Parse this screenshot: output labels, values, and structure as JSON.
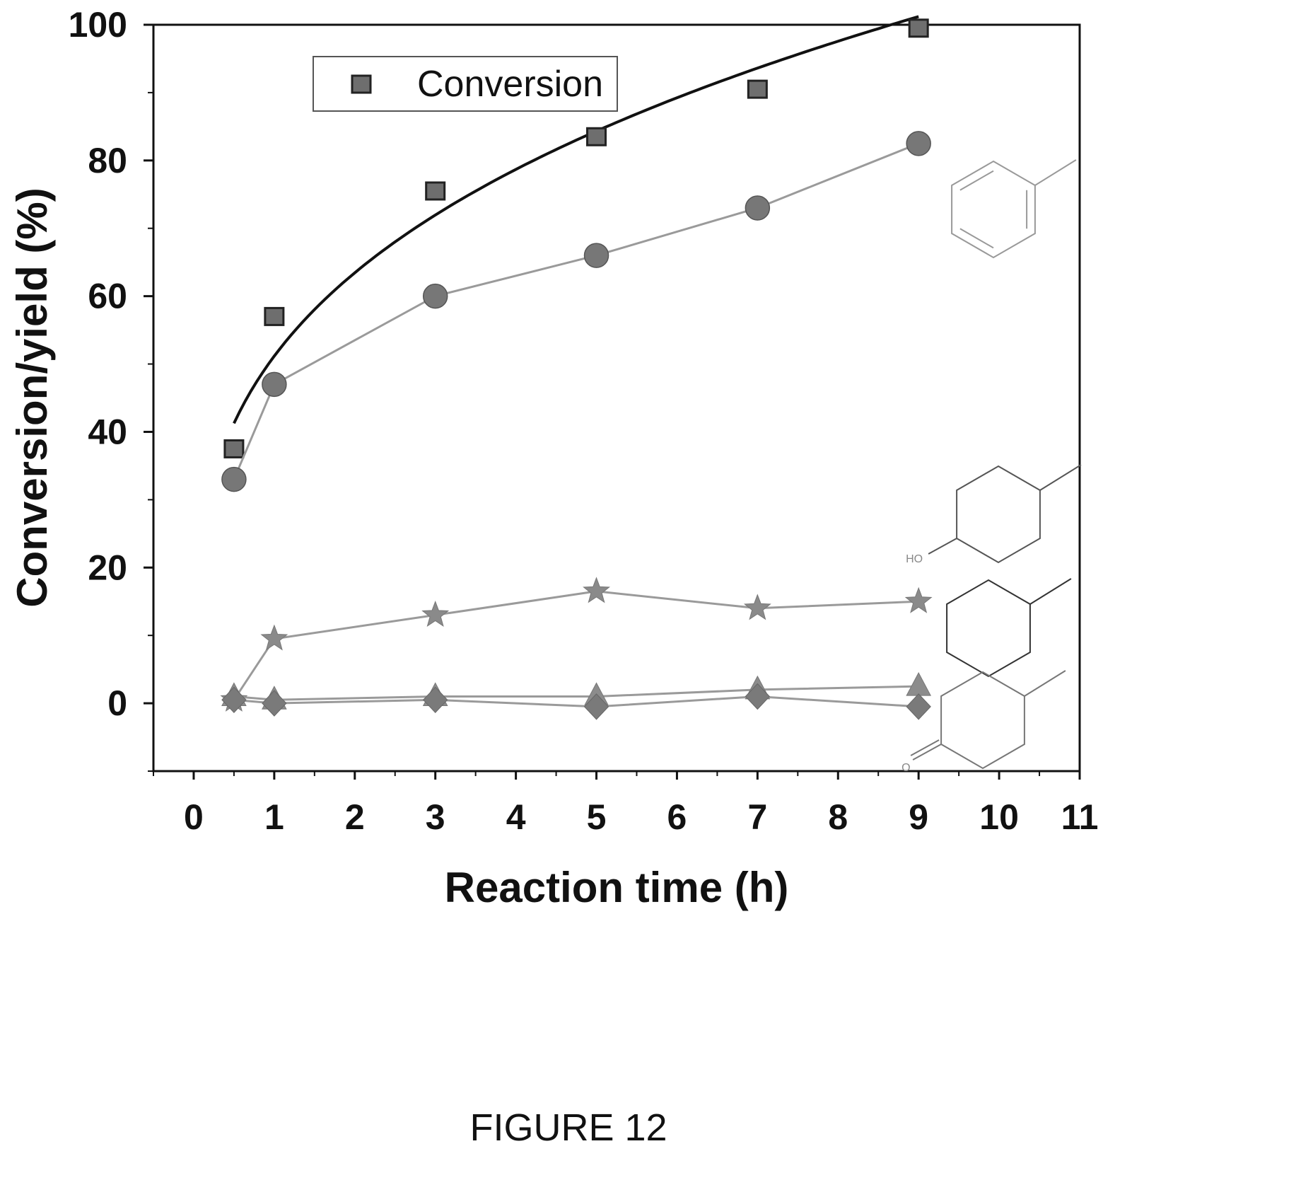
{
  "caption": "FIGURE 12",
  "chart_data": {
    "type": "line",
    "xlabel": "Reaction time (h)",
    "ylabel": "Conversion/yield (%)",
    "xlim": [
      -0.5,
      11
    ],
    "ylim": [
      -10,
      100
    ],
    "xticks": [
      0,
      1,
      2,
      3,
      4,
      5,
      6,
      7,
      8,
      9,
      10,
      11
    ],
    "yticks": [
      0,
      20,
      40,
      60,
      80,
      100
    ],
    "grid": false,
    "legend": {
      "position": "top-left",
      "entries": [
        "Conversion"
      ]
    },
    "x": [
      0.5,
      1,
      3,
      5,
      7,
      9
    ],
    "series": [
      {
        "name": "Conversion",
        "marker": "square",
        "color": "#6e6e6e",
        "values": [
          37.5,
          57,
          75.5,
          83.5,
          90.5,
          99.5
        ],
        "fit": "power"
      },
      {
        "marker": "circle",
        "color": "#777777",
        "values": [
          33,
          47,
          60,
          66,
          73,
          82.5
        ]
      },
      {
        "marker": "star",
        "color": "#8a8a8a",
        "values": [
          0.5,
          9.5,
          13,
          16.5,
          14,
          15
        ]
      },
      {
        "marker": "triangle",
        "color": "#8c8c8c",
        "values": [
          1,
          0.5,
          1,
          1,
          2,
          2.5
        ]
      },
      {
        "marker": "diamond",
        "color": "#7a7a7a",
        "values": [
          0.5,
          0,
          0.5,
          -0.5,
          1,
          -0.5
        ]
      }
    ],
    "structures": [
      {
        "name": "toluene",
        "attached_to": 1,
        "label": ""
      },
      {
        "name": "4-methylcyclohexanol",
        "attached_to": 2,
        "label": "HO"
      },
      {
        "name": "methylcyclohexane",
        "attached_to": 3,
        "label": ""
      },
      {
        "name": "4-methylcyclohexanone",
        "attached_to": 4,
        "label": "O"
      }
    ]
  }
}
